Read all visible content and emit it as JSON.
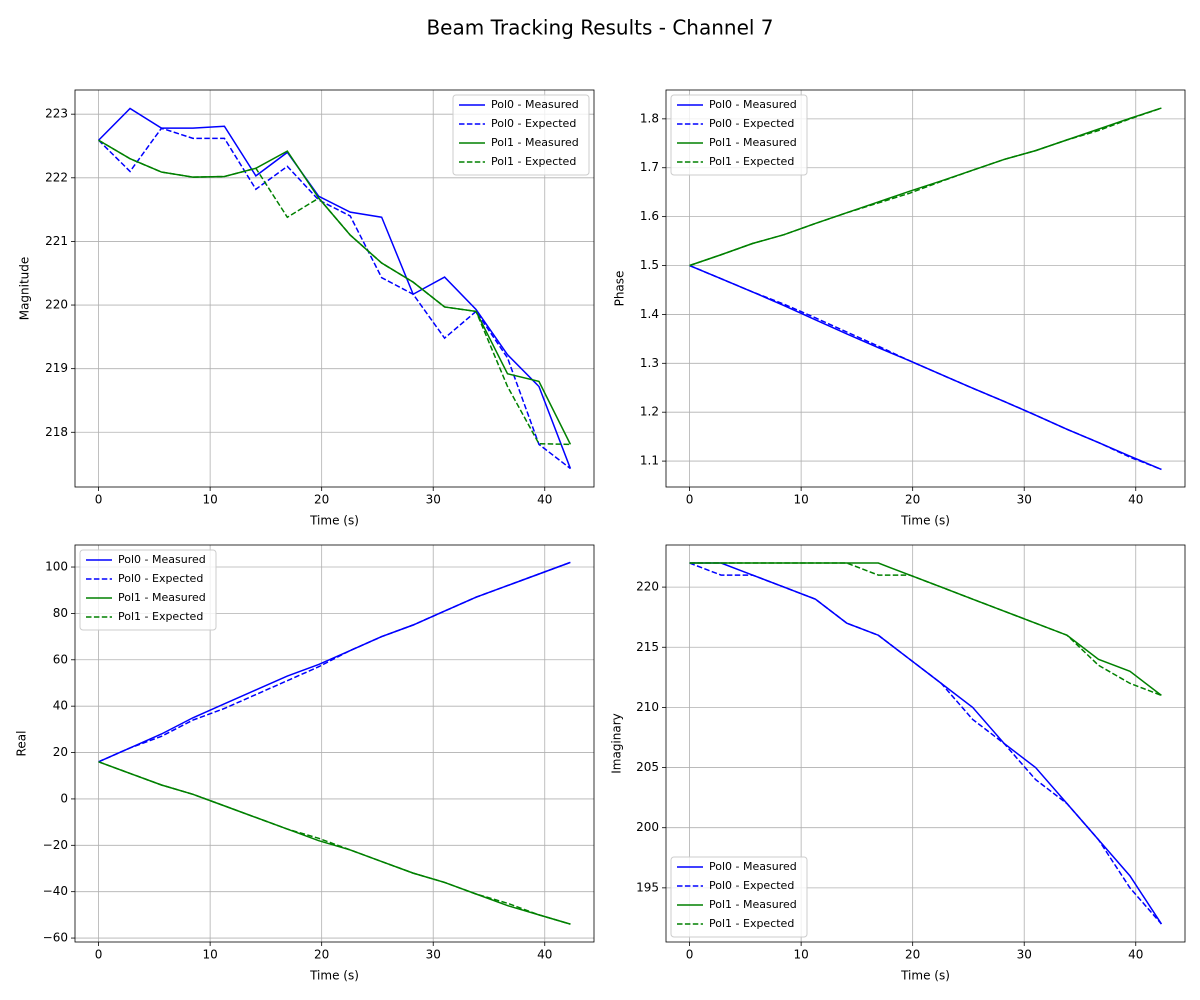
{
  "title": "Beam Tracking Results - Channel 7",
  "chart_data": [
    {
      "type": "line",
      "xlabel": "Time (s)",
      "ylabel": "Magnitude",
      "x": [
        0,
        2.82,
        5.64,
        8.46,
        11.28,
        14.1,
        16.92,
        19.74,
        22.56,
        25.38,
        28.2,
        31.02,
        33.84,
        36.66,
        39.48,
        42.3
      ],
      "series": [
        {
          "name": "Pol0 - Measured",
          "color": "#0000ff",
          "linestyle": "solid",
          "values": [
            222.59,
            223.09,
            222.78,
            222.78,
            222.81,
            222.03,
            222.4,
            221.71,
            221.46,
            221.38,
            220.17,
            220.44,
            219.93,
            219.22,
            218.72,
            217.43
          ]
        },
        {
          "name": "Pol0 - Expected",
          "color": "#0000ff",
          "linestyle": "dashed",
          "values": [
            222.59,
            222.1,
            222.78,
            222.62,
            222.62,
            221.82,
            222.18,
            221.65,
            221.4,
            220.43,
            220.17,
            219.48,
            219.9,
            219.17,
            217.81,
            217.43
          ]
        },
        {
          "name": "Pol1 - Measured",
          "color": "#008000",
          "linestyle": "solid",
          "values": [
            222.59,
            222.3,
            222.09,
            222.01,
            222.02,
            222.15,
            222.42,
            221.68,
            221.1,
            220.66,
            220.36,
            219.97,
            219.9,
            218.92,
            218.8,
            217.81
          ]
        },
        {
          "name": "Pol1 - Expected",
          "color": "#008000",
          "linestyle": "dashed",
          "values": [
            222.59,
            222.3,
            222.09,
            222.01,
            222.02,
            222.15,
            221.38,
            221.68,
            221.1,
            220.66,
            220.36,
            219.97,
            219.9,
            218.72,
            217.82,
            217.81
          ]
        }
      ],
      "xlim": [
        -2.115,
        44.415
      ],
      "xticks": [
        0,
        10,
        20,
        30,
        40
      ],
      "ylim": [
        217.14,
        223.38
      ],
      "yticks": [
        218,
        219,
        220,
        221,
        222,
        223
      ],
      "grid": true,
      "legend": "upper right"
    },
    {
      "type": "line",
      "xlabel": "Time (s)",
      "ylabel": "Phase",
      "x": [
        0,
        2.82,
        5.64,
        8.46,
        11.28,
        14.1,
        16.92,
        19.74,
        22.56,
        25.38,
        28.2,
        31.02,
        33.84,
        36.66,
        39.48,
        42.3
      ],
      "series": [
        {
          "name": "Pol0 - Measured",
          "color": "#0000ff",
          "linestyle": "solid",
          "values": [
            1.5,
            1.473,
            1.446,
            1.418,
            1.389,
            1.36,
            1.332,
            1.305,
            1.277,
            1.249,
            1.222,
            1.194,
            1.165,
            1.138,
            1.11,
            1.083
          ]
        },
        {
          "name": "Pol0 - Expected",
          "color": "#0000ff",
          "linestyle": "dashed",
          "values": [
            1.5,
            1.473,
            1.446,
            1.421,
            1.393,
            1.364,
            1.335,
            1.305,
            1.277,
            1.249,
            1.222,
            1.194,
            1.165,
            1.138,
            1.108,
            1.083
          ]
        },
        {
          "name": "Pol1 - Measured",
          "color": "#008000",
          "linestyle": "solid",
          "values": [
            1.5,
            1.522,
            1.545,
            1.563,
            1.586,
            1.608,
            1.63,
            1.652,
            1.673,
            1.695,
            1.717,
            1.735,
            1.757,
            1.779,
            1.801,
            1.822
          ]
        },
        {
          "name": "Pol1 - Expected",
          "color": "#008000",
          "linestyle": "dashed",
          "values": [
            1.5,
            1.522,
            1.545,
            1.563,
            1.586,
            1.608,
            1.628,
            1.648,
            1.672,
            1.695,
            1.717,
            1.735,
            1.757,
            1.776,
            1.8,
            1.822
          ]
        }
      ],
      "xlim": [
        -2.115,
        44.415
      ],
      "xticks": [
        0,
        10,
        20,
        30,
        40
      ],
      "ylim": [
        1.047,
        1.859
      ],
      "yticks": [
        1.1,
        1.2,
        1.3,
        1.4,
        1.5,
        1.6,
        1.7,
        1.8
      ],
      "grid": true,
      "legend": "upper left"
    },
    {
      "type": "line",
      "xlabel": "Time (s)",
      "ylabel": "Real",
      "x": [
        0,
        2.82,
        5.64,
        8.46,
        11.28,
        14.1,
        16.92,
        19.74,
        22.56,
        25.38,
        28.2,
        31.02,
        33.84,
        36.66,
        39.48,
        42.3
      ],
      "series": [
        {
          "name": "Pol0 - Measured",
          "color": "#0000ff",
          "linestyle": "solid",
          "values": [
            16,
            22,
            28,
            35,
            41,
            47,
            53,
            58,
            64,
            70,
            75,
            81,
            87,
            92,
            97,
            102
          ]
        },
        {
          "name": "Pol0 - Expected",
          "color": "#0000ff",
          "linestyle": "dashed",
          "values": [
            16,
            22,
            27,
            34,
            39,
            45,
            51,
            57,
            64,
            70,
            75,
            81,
            87,
            92,
            97,
            102
          ]
        },
        {
          "name": "Pol1 - Measured",
          "color": "#008000",
          "linestyle": "solid",
          "values": [
            16,
            11,
            6,
            2,
            -3,
            -8,
            -13,
            -18,
            -22,
            -27,
            -32,
            -36,
            -41,
            -46,
            -50,
            -54
          ]
        },
        {
          "name": "Pol1 - Expected",
          "color": "#008000",
          "linestyle": "dashed",
          "values": [
            16,
            11,
            6,
            2,
            -3,
            -8,
            -13,
            -17,
            -22,
            -27,
            -32,
            -36,
            -41,
            -45,
            -50,
            -54
          ]
        }
      ],
      "xlim": [
        -2.115,
        44.415
      ],
      "xticks": [
        0,
        10,
        20,
        30,
        40
      ],
      "ylim": [
        -61.7,
        109.5
      ],
      "yticks": [
        {
          "value": -60,
          "label": "−60"
        },
        {
          "value": -40,
          "label": "−40"
        },
        {
          "value": -20,
          "label": "−20"
        },
        0,
        20,
        40,
        60,
        80,
        100
      ],
      "grid": true,
      "legend": "upper left"
    },
    {
      "type": "line",
      "xlabel": "Time (s)",
      "ylabel": "Imaginary",
      "x": [
        0,
        2.82,
        5.64,
        8.46,
        11.28,
        14.1,
        16.92,
        19.74,
        22.56,
        25.38,
        28.2,
        31.02,
        33.84,
        36.66,
        39.48,
        42.3
      ],
      "series": [
        {
          "name": "Pol0 - Measured",
          "color": "#0000ff",
          "linestyle": "solid",
          "values": [
            222,
            222,
            221,
            220,
            219,
            217,
            216,
            214,
            212,
            210,
            207,
            205,
            202,
            199,
            196,
            192
          ]
        },
        {
          "name": "Pol0 - Expected",
          "color": "#0000ff",
          "linestyle": "dashed",
          "values": [
            222,
            221,
            221,
            220,
            219,
            217,
            216,
            214,
            212,
            209,
            207,
            204,
            202,
            199,
            195,
            192
          ]
        },
        {
          "name": "Pol1 - Measured",
          "color": "#008000",
          "linestyle": "solid",
          "values": [
            222,
            222,
            222,
            222,
            222,
            222,
            222,
            221,
            220,
            219,
            218,
            217,
            216,
            214,
            213,
            211
          ]
        },
        {
          "name": "Pol1 - Expected",
          "color": "#008000",
          "linestyle": "dashed",
          "values": [
            222,
            222,
            222,
            222,
            222,
            222,
            221,
            221,
            220,
            219,
            218,
            217,
            216,
            213.5,
            212,
            211
          ]
        }
      ],
      "xlim": [
        -2.115,
        44.415
      ],
      "xticks": [
        0,
        10,
        20,
        30,
        40
      ],
      "ylim": [
        190.5,
        223.5
      ],
      "yticks": [
        195,
        200,
        205,
        210,
        215,
        220
      ],
      "grid": true,
      "legend": "lower left"
    }
  ]
}
